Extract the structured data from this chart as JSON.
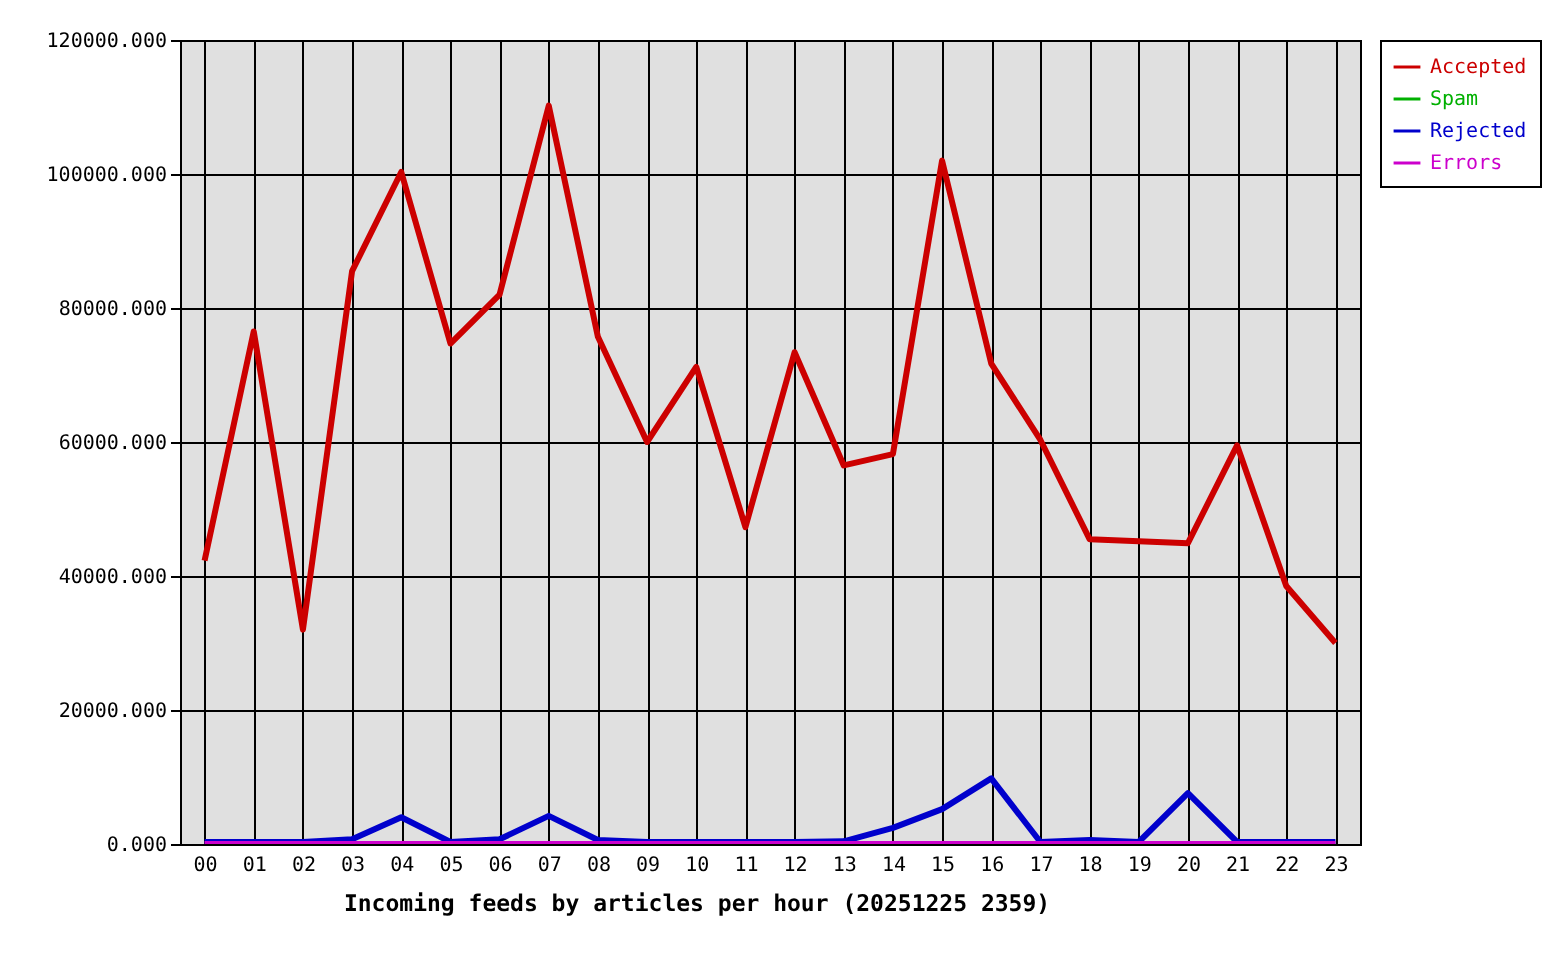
{
  "chart_data": {
    "type": "line",
    "xlabel": "Incoming feeds by articles per hour (20251225 2359)",
    "categories": [
      "00",
      "01",
      "02",
      "03",
      "04",
      "05",
      "06",
      "07",
      "08",
      "09",
      "10",
      "11",
      "12",
      "13",
      "14",
      "15",
      "16",
      "17",
      "18",
      "19",
      "20",
      "21",
      "22",
      "23"
    ],
    "series": [
      {
        "name": "Accepted",
        "color": "#cc0000",
        "values": [
          42300,
          76500,
          32000,
          85500,
          100300,
          74700,
          82000,
          110200,
          75700,
          60000,
          71200,
          47300,
          73400,
          56500,
          58200,
          102000,
          71700,
          60300,
          45500,
          45200,
          44900,
          59500,
          38500,
          30000
        ]
      },
      {
        "name": "Spam",
        "color": "#00b000",
        "values": [
          null,
          null,
          null,
          null,
          null,
          null,
          null,
          null,
          null,
          null,
          null,
          null,
          null,
          null,
          null,
          null,
          null,
          null,
          null,
          null,
          null,
          null,
          null,
          null
        ]
      },
      {
        "name": "Rejected",
        "color": "#0000cc",
        "values": [
          300,
          300,
          300,
          700,
          4000,
          300,
          700,
          4200,
          600,
          300,
          300,
          300,
          300,
          400,
          2400,
          5200,
          9800,
          300,
          600,
          300,
          7600,
          300,
          300,
          300
        ]
      },
      {
        "name": "Errors",
        "color": "#cc00cc",
        "values": [
          0,
          0,
          0,
          0,
          0,
          0,
          0,
          0,
          0,
          0,
          0,
          0,
          0,
          0,
          0,
          0,
          0,
          0,
          0,
          0,
          0,
          0,
          0,
          0
        ]
      }
    ],
    "ylim": [
      0,
      120000
    ],
    "yticks": [
      {
        "value": 0,
        "label": "0.000"
      },
      {
        "value": 20000,
        "label": "20000.000"
      },
      {
        "value": 40000,
        "label": "40000.000"
      },
      {
        "value": 60000,
        "label": "60000.000"
      },
      {
        "value": 80000,
        "label": "80000.000"
      },
      {
        "value": 100000,
        "label": "100000.000"
      },
      {
        "value": 120000,
        "label": "120000.000"
      }
    ],
    "grid": true,
    "legend": "top right"
  }
}
